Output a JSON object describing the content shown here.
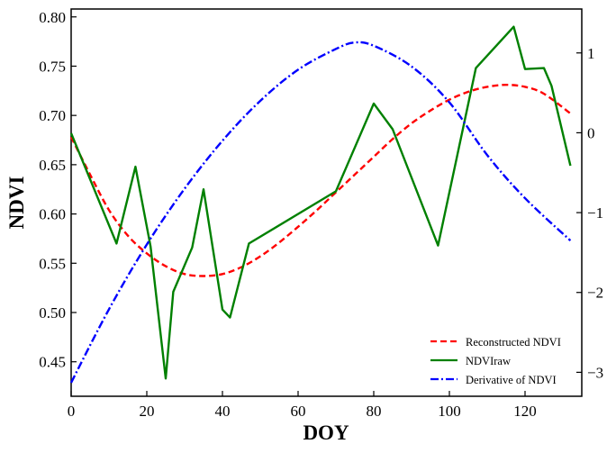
{
  "chart_data": {
    "type": "line",
    "title": "",
    "xlabel": "DOY",
    "ylabel": "NDVI",
    "xlim": [
      0,
      135
    ],
    "ylim": [
      0.415,
      0.808
    ],
    "y2lim": [
      -3.3,
      1.55
    ],
    "x_ticks": [
      0,
      20,
      40,
      60,
      80,
      100,
      120
    ],
    "y_ticks": [
      0.45,
      0.5,
      0.55,
      0.6,
      0.65,
      0.7,
      0.75,
      0.8
    ],
    "y2_ticks": [
      -3,
      -2,
      -1,
      0,
      1
    ],
    "grid": false,
    "legend_position": "lower-right",
    "series": [
      {
        "name": "Reconstructed NDVI",
        "axis": "left",
        "color": "#ff0000",
        "style": "dashed",
        "points": [
          [
            0,
            0.678
          ],
          [
            5,
            0.64
          ],
          [
            10,
            0.604
          ],
          [
            15,
            0.578
          ],
          [
            20,
            0.56
          ],
          [
            25,
            0.547
          ],
          [
            30,
            0.539
          ],
          [
            35,
            0.537
          ],
          [
            40,
            0.539
          ],
          [
            45,
            0.546
          ],
          [
            50,
            0.557
          ],
          [
            55,
            0.571
          ],
          [
            60,
            0.587
          ],
          [
            65,
            0.604
          ],
          [
            70,
            0.622
          ],
          [
            75,
            0.64
          ],
          [
            80,
            0.658
          ],
          [
            85,
            0.676
          ],
          [
            90,
            0.692
          ],
          [
            95,
            0.705
          ],
          [
            100,
            0.716
          ],
          [
            105,
            0.724
          ],
          [
            110,
            0.729
          ],
          [
            115,
            0.731
          ],
          [
            120,
            0.729
          ],
          [
            125,
            0.722
          ],
          [
            132,
            0.702
          ]
        ]
      },
      {
        "name": "NDVIraw",
        "axis": "left",
        "color": "#008000",
        "style": "solid",
        "points": [
          [
            0,
            0.682
          ],
          [
            12,
            0.57
          ],
          [
            17,
            0.648
          ],
          [
            21,
            0.567
          ],
          [
            25,
            0.433
          ],
          [
            27,
            0.521
          ],
          [
            32,
            0.566
          ],
          [
            35,
            0.625
          ],
          [
            40,
            0.503
          ],
          [
            42,
            0.495
          ],
          [
            47,
            0.57
          ],
          [
            70,
            0.623
          ],
          [
            80,
            0.712
          ],
          [
            85,
            0.686
          ],
          [
            97,
            0.568
          ],
          [
            107,
            0.748
          ],
          [
            117,
            0.79
          ],
          [
            120,
            0.747
          ],
          [
            125,
            0.748
          ],
          [
            127,
            0.73
          ],
          [
            132,
            0.649
          ]
        ]
      },
      {
        "name": "Derivative of NDVI",
        "axis": "right",
        "color": "#0000ff",
        "style": "dashdot",
        "points": [
          [
            0,
            -3.13
          ],
          [
            10,
            -2.21
          ],
          [
            20,
            -1.4
          ],
          [
            30,
            -0.7
          ],
          [
            40,
            -0.1
          ],
          [
            50,
            0.4
          ],
          [
            60,
            0.79
          ],
          [
            70,
            1.05
          ],
          [
            75,
            1.13
          ],
          [
            80,
            1.09
          ],
          [
            90,
            0.83
          ],
          [
            100,
            0.38
          ],
          [
            110,
            -0.28
          ],
          [
            120,
            -0.82
          ],
          [
            132,
            -1.35
          ]
        ]
      }
    ]
  }
}
